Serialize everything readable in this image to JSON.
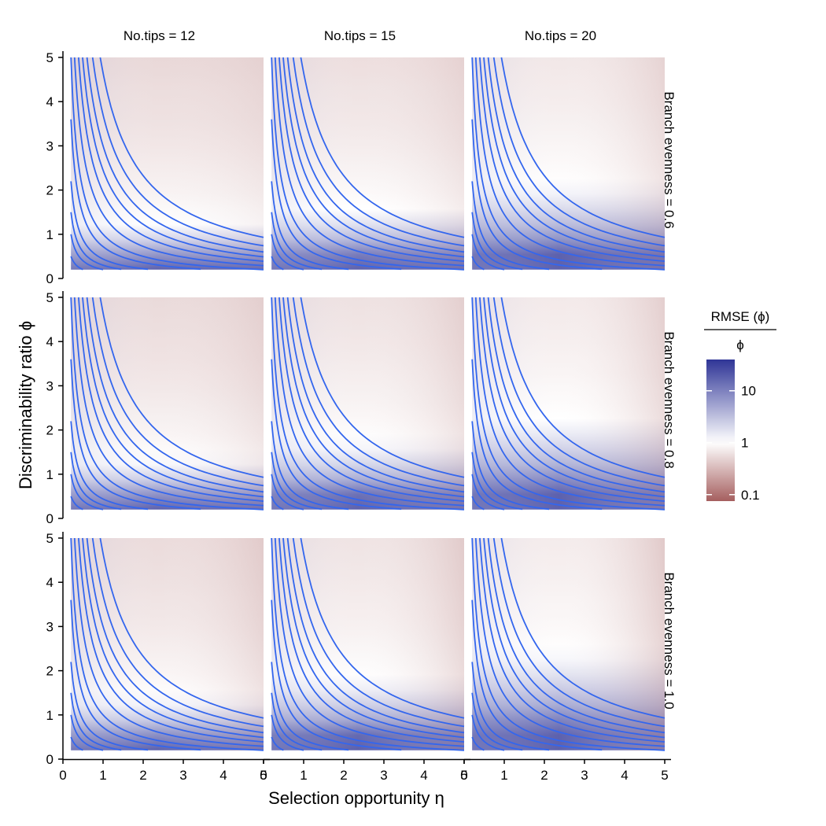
{
  "chart_data": {
    "type": "heatmap",
    "description_note": "3x3 faceted heatmap with overlaid contour lines (eta*phi = const)",
    "xlabel": "Selection opportunity",
    "xlabel_symbol": "η",
    "ylabel": "Discriminability ratio",
    "ylabel_symbol": "ϕ",
    "xlim": [
      0,
      5
    ],
    "ylim": [
      0,
      5
    ],
    "x_ticks": [
      "0",
      "1",
      "2",
      "3",
      "4",
      "5"
    ],
    "y_ticks": [
      "0",
      "1",
      "2",
      "3",
      "4",
      "5"
    ],
    "data_range": {
      "x": [
        0.2,
        5
      ],
      "y": [
        0.2,
        5
      ]
    },
    "column_facets": [
      {
        "label": "No.tips = 12",
        "tips": 12
      },
      {
        "label": "No.tips = 15",
        "tips": 15
      },
      {
        "label": "No.tips = 20",
        "tips": 20
      }
    ],
    "row_facets": [
      {
        "label": "Branch evenness = 0.6",
        "evenness": 0.6
      },
      {
        "label": "Branch evenness = 0.8",
        "evenness": 0.8
      },
      {
        "label": "Branch evenness = 1.0",
        "evenness": 1.0
      }
    ],
    "contour_levels": [
      0.1,
      0.2,
      0.3,
      0.44,
      0.72,
      1.0,
      1.45,
      1.95,
      2.45,
      3.0,
      3.7,
      4.65
    ],
    "contour_color": "#3366ee",
    "one_contour_phi_at_eta_2_5": [
      [
        1.25,
        1.55,
        2.1
      ],
      [
        1.3,
        1.7,
        2.25
      ],
      [
        1.35,
        1.8,
        2.4
      ]
    ],
    "legend": {
      "title_numerator": "RMSE (ϕ)",
      "title_denominator": "ϕ",
      "labels": [
        "10",
        "1",
        "0.1"
      ],
      "values": [
        10,
        1,
        0.1
      ],
      "min": 0.075,
      "max": 40,
      "colors": {
        "high": "#2f3596",
        "mid": "#ffffff",
        "low": "#a55f5f"
      }
    }
  }
}
